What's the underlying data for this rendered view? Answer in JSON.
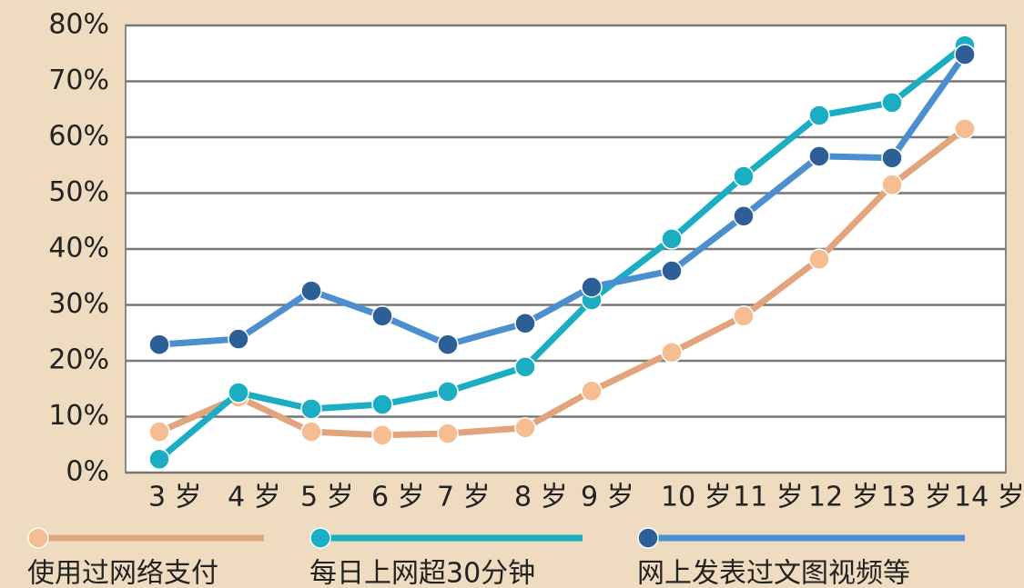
{
  "chart_data": {
    "type": "line",
    "categories": [
      "3 岁",
      "4 岁",
      "5 岁",
      "6 岁",
      "7 岁",
      "8 岁",
      "9 岁",
      "10 岁",
      "11 岁",
      "12 岁",
      "13 岁",
      "14 岁"
    ],
    "series": [
      {
        "name": "使用过网络支付",
        "color": "#e2a47c",
        "marker_color": "#f7bd92",
        "values": [
          7.3,
          13.5,
          7.3,
          6.7,
          7,
          8,
          14.6,
          21.5,
          28,
          38.2,
          51.5,
          61.5
        ]
      },
      {
        "name": "每日上网超30分钟",
        "color": "#1badc2",
        "marker_color": "#1badc2",
        "values": [
          2.4,
          14.3,
          11.4,
          12.2,
          14.5,
          18.9,
          30.9,
          41.8,
          53,
          63.9,
          66.2,
          76.4
        ]
      },
      {
        "name": "网上发表过文图视频等",
        "color": "#4b8fcf",
        "marker_color": "#2c5f96",
        "values": [
          22.9,
          23.9,
          32.5,
          28,
          22.9,
          26.7,
          33.2,
          36.1,
          45.9,
          56.6,
          56.3,
          74.8
        ]
      }
    ],
    "ylim": [
      0,
      80
    ],
    "yticks": [
      {
        "value": 0,
        "label": "0%"
      },
      {
        "value": 10,
        "label": "10%"
      },
      {
        "value": 20,
        "label": "20%"
      },
      {
        "value": 30,
        "label": "30%"
      },
      {
        "value": 40,
        "label": "40%"
      },
      {
        "value": 50,
        "label": "50%"
      },
      {
        "value": 60,
        "label": "60%"
      },
      {
        "value": 70,
        "label": "70%"
      },
      {
        "value": 80,
        "label": "80%"
      }
    ],
    "grid": true
  }
}
